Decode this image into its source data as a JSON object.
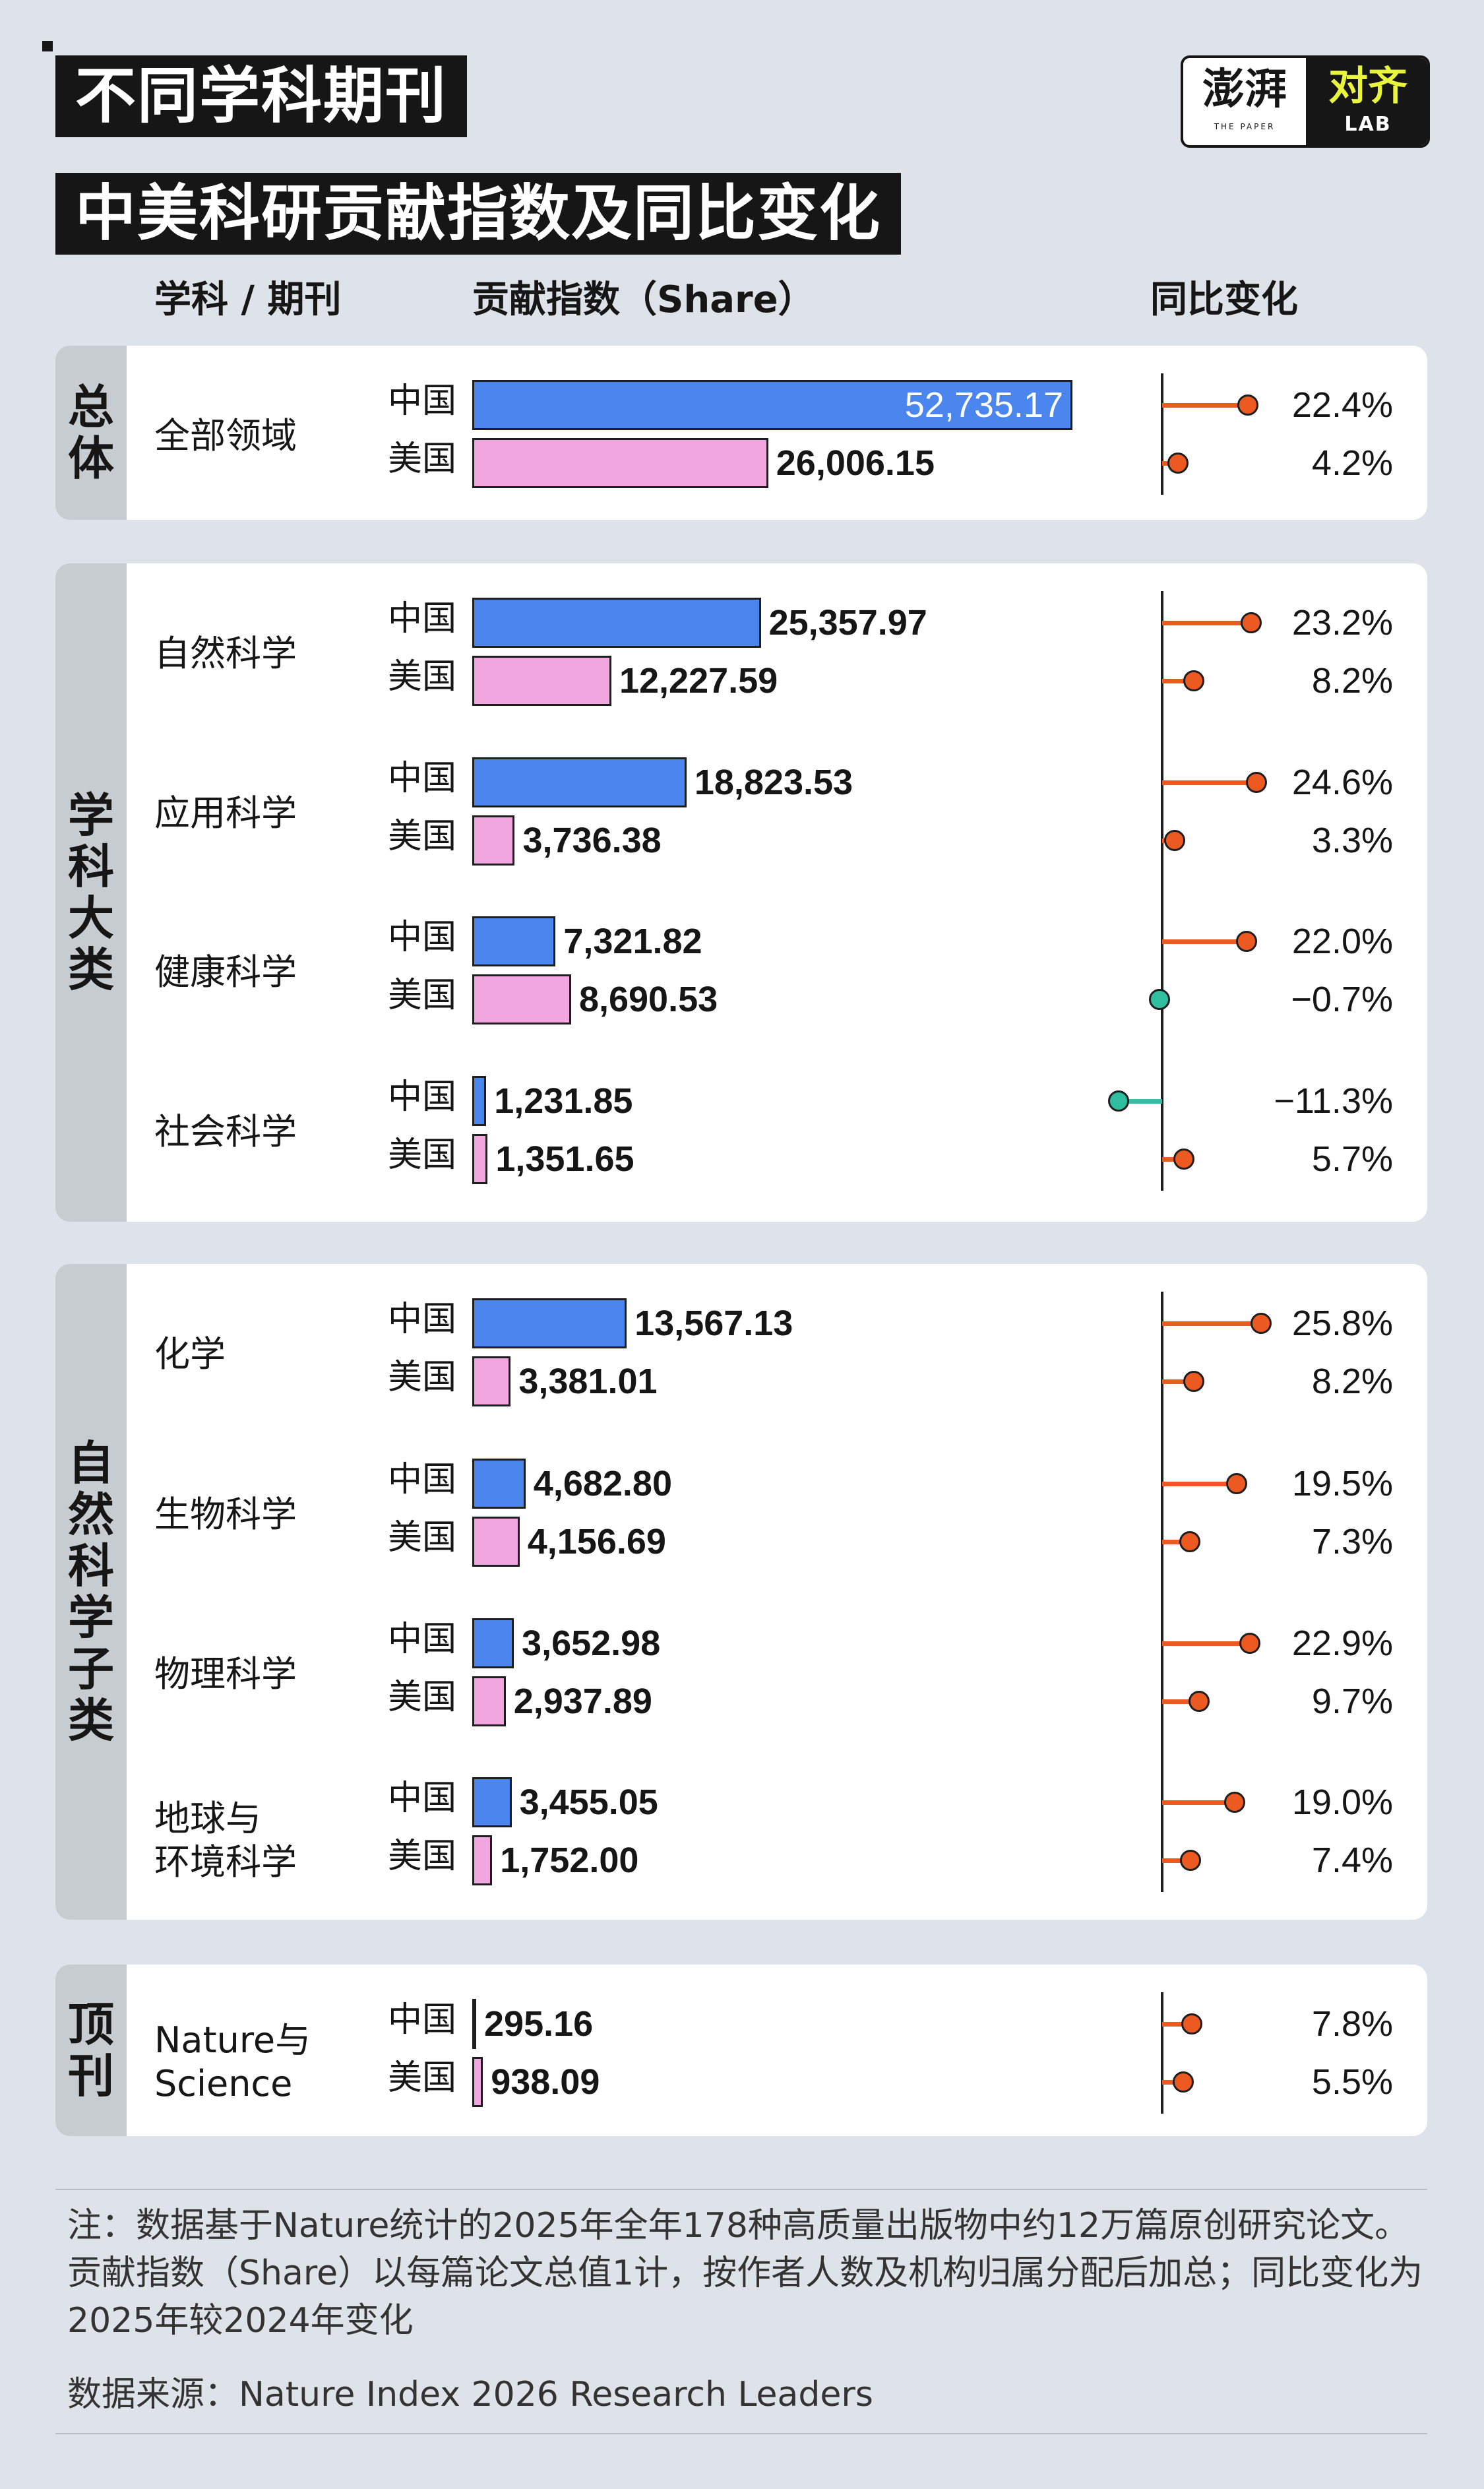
{
  "title_lines": [
    "不同学科期刊",
    "中美科研贡献指数及同比变化"
  ],
  "logo": {
    "main": "澎湃",
    "sub": "THE PAPER",
    "right": "对齐",
    "lab": "LAB"
  },
  "headers": {
    "category": "学科 / 期刊",
    "share": "贡献指数（Share）",
    "yoy": "同比变化"
  },
  "country_labels": {
    "china": "中国",
    "us": "美国"
  },
  "colors": {
    "china_bar": "#4a86ee",
    "us_bar": "#f2a6e0",
    "positive": "#ec5a22",
    "negative": "#2fbfa0",
    "panel_side": "#c6ccd0"
  },
  "chart_data": {
    "type": "bar",
    "orientation": "horizontal",
    "series_names": [
      "中国",
      "美国"
    ],
    "groups": [
      {
        "label": "总体",
        "rows": [
          {
            "category": "全部领域",
            "china": {
              "share": 52735.17,
              "share_label": "52,735.17",
              "yoy": 22.4,
              "yoy_label": "22.4%"
            },
            "us": {
              "share": 26006.15,
              "share_label": "26,006.15",
              "yoy": 4.2,
              "yoy_label": "4.2%"
            }
          }
        ]
      },
      {
        "label": "学科大类",
        "rows": [
          {
            "category": "自然科学",
            "china": {
              "share": 25357.97,
              "share_label": "25,357.97",
              "yoy": 23.2,
              "yoy_label": "23.2%"
            },
            "us": {
              "share": 12227.59,
              "share_label": "12,227.59",
              "yoy": 8.2,
              "yoy_label": "8.2%"
            }
          },
          {
            "category": "应用科学",
            "china": {
              "share": 18823.53,
              "share_label": "18,823.53",
              "yoy": 24.6,
              "yoy_label": "24.6%"
            },
            "us": {
              "share": 3736.38,
              "share_label": "3,736.38",
              "yoy": 3.3,
              "yoy_label": "3.3%"
            }
          },
          {
            "category": "健康科学",
            "china": {
              "share": 7321.82,
              "share_label": "7,321.82",
              "yoy": 22.0,
              "yoy_label": "22.0%"
            },
            "us": {
              "share": 8690.53,
              "share_label": "8,690.53",
              "yoy": -0.7,
              "yoy_label": "−0.7%"
            }
          },
          {
            "category": "社会科学",
            "china": {
              "share": 1231.85,
              "share_label": "1,231.85",
              "yoy": -11.3,
              "yoy_label": "−11.3%"
            },
            "us": {
              "share": 1351.65,
              "share_label": "1,351.65",
              "yoy": 5.7,
              "yoy_label": "5.7%"
            }
          }
        ]
      },
      {
        "label": "自然科学子类",
        "rows": [
          {
            "category": "化学",
            "china": {
              "share": 13567.13,
              "share_label": "13,567.13",
              "yoy": 25.8,
              "yoy_label": "25.8%"
            },
            "us": {
              "share": 3381.01,
              "share_label": "3,381.01",
              "yoy": 8.2,
              "yoy_label": "8.2%"
            }
          },
          {
            "category": "生物科学",
            "china": {
              "share": 4682.8,
              "share_label": "4,682.80",
              "yoy": 19.5,
              "yoy_label": "19.5%"
            },
            "us": {
              "share": 4156.69,
              "share_label": "4,156.69",
              "yoy": 7.3,
              "yoy_label": "7.3%"
            }
          },
          {
            "category": "物理科学",
            "china": {
              "share": 3652.98,
              "share_label": "3,652.98",
              "yoy": 22.9,
              "yoy_label": "22.9%"
            },
            "us": {
              "share": 2937.89,
              "share_label": "2,937.89",
              "yoy": 9.7,
              "yoy_label": "9.7%"
            }
          },
          {
            "category": "地球与\n环境科学",
            "china": {
              "share": 3455.05,
              "share_label": "3,455.05",
              "yoy": 19.0,
              "yoy_label": "19.0%"
            },
            "us": {
              "share": 1752.0,
              "share_label": "1,752.00",
              "yoy": 7.4,
              "yoy_label": "7.4%"
            }
          }
        ]
      },
      {
        "label": "顶刊",
        "rows": [
          {
            "category": "Nature与\nScience",
            "china": {
              "share": 295.16,
              "share_label": "295.16",
              "yoy": 7.8,
              "yoy_label": "7.8%"
            },
            "us": {
              "share": 938.09,
              "share_label": "938.09",
              "yoy": 5.5,
              "yoy_label": "5.5%"
            }
          }
        ]
      }
    ]
  },
  "note": "注：数据基于Nature统计的2025年全年178种高质量出版物中约12万篇原创研究论文。贡献指数（Share）以每篇论文总值1计，按作者人数及机构归属分配后加总；同比变化为2025年较2024年变化",
  "source": "数据来源：Nature Index 2026 Research Leaders"
}
